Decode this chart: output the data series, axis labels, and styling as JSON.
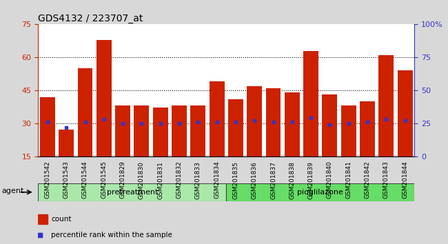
{
  "title": "GDS4132 / 223707_at",
  "samples": [
    "GSM201542",
    "GSM201543",
    "GSM201544",
    "GSM201545",
    "GSM201829",
    "GSM201830",
    "GSM201831",
    "GSM201832",
    "GSM201833",
    "GSM201834",
    "GSM201835",
    "GSM201836",
    "GSM201837",
    "GSM201838",
    "GSM201839",
    "GSM201840",
    "GSM201841",
    "GSM201842",
    "GSM201843",
    "GSM201844"
  ],
  "count_values": [
    42,
    27,
    55,
    68,
    38,
    38,
    37,
    38,
    38,
    49,
    41,
    47,
    46,
    44,
    63,
    43,
    38,
    40,
    61,
    54
  ],
  "percentile_values": [
    26,
    22,
    26,
    28,
    25,
    25,
    25,
    25,
    26,
    26,
    26,
    27,
    26,
    26,
    29,
    24,
    25,
    26,
    28,
    27
  ],
  "pretreatment_count": 10,
  "pioglilazone_count": 10,
  "group_label_pretreatment": "pretreatment",
  "group_label_pioglilazone": "pioglilazone",
  "group_label_agent": "agent",
  "ylim_left": [
    15,
    75
  ],
  "ylim_right": [
    0,
    100
  ],
  "yticks_left": [
    15,
    30,
    45,
    60,
    75
  ],
  "yticks_right": [
    0,
    25,
    50,
    75,
    100
  ],
  "yticklabels_right": [
    "0",
    "25",
    "50",
    "75",
    "100%"
  ],
  "bar_color": "#cc2200",
  "dot_color": "#3333cc",
  "bg_axes": "#d8d8d8",
  "bar_width": 0.8,
  "left_axis_color": "#cc2200",
  "right_axis_color": "#3333cc",
  "pre_color": "#aae8aa",
  "pio_color": "#66dd66",
  "legend_count_label": "count",
  "legend_pct_label": "percentile rank within the sample",
  "grid_ticks": [
    30,
    45,
    60
  ],
  "title_fontsize": 10
}
